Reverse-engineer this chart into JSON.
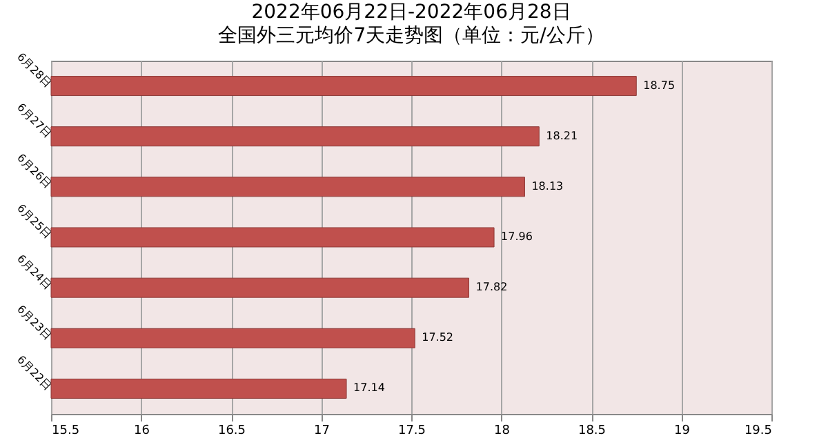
{
  "chart_data": {
    "type": "bar",
    "orientation": "horizontal",
    "title": "2022年06月22日-2022年06月28日",
    "subtitle": "全国外三元均价7天走势图（单位：元/公斤）",
    "categories": [
      "6月28日",
      "6月27日",
      "6月26日",
      "6月25日",
      "6月24日",
      "6月23日",
      "6月22日"
    ],
    "values": [
      18.75,
      18.21,
      18.13,
      17.96,
      17.82,
      17.52,
      17.14
    ],
    "color": "#c0504d",
    "xlim": [
      15.5,
      19.5
    ],
    "xticks": [
      15.5,
      16,
      16.5,
      17,
      17.5,
      18,
      18.5,
      19,
      19.5
    ],
    "grid": "x",
    "data_labels": true
  }
}
